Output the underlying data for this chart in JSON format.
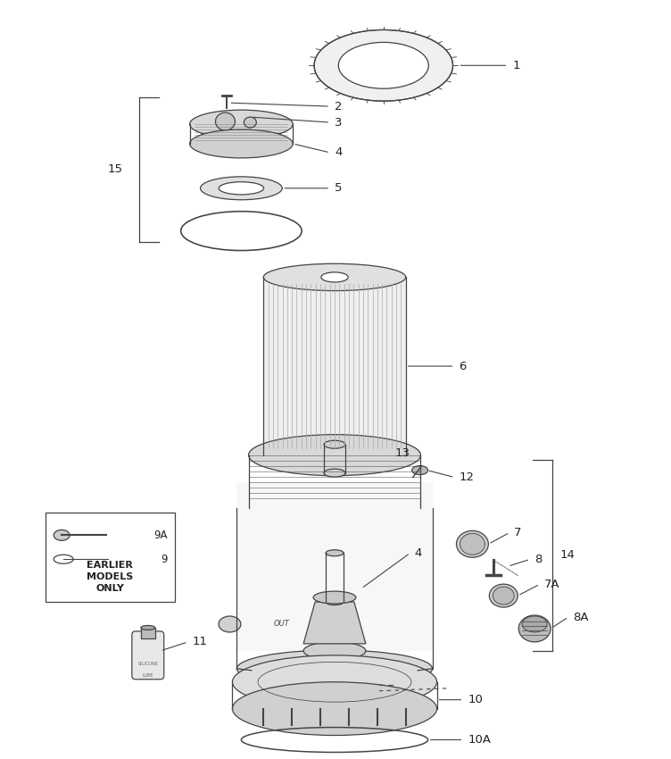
{
  "bg_color": "#ffffff",
  "line_color": "#444444",
  "label_color": "#222222",
  "parts": [
    {
      "id": "1",
      "label": "1"
    },
    {
      "id": "2",
      "label": "2"
    },
    {
      "id": "3",
      "label": "3"
    },
    {
      "id": "4",
      "label": "4"
    },
    {
      "id": "5",
      "label": "5"
    },
    {
      "id": "15",
      "label": "15"
    },
    {
      "id": "6",
      "label": "6"
    },
    {
      "id": "13",
      "label": "13"
    },
    {
      "id": "12",
      "label": "12"
    },
    {
      "id": "14",
      "label": "14"
    },
    {
      "id": "7",
      "label": "7"
    },
    {
      "id": "8",
      "label": "8"
    },
    {
      "id": "7A",
      "label": "7A"
    },
    {
      "id": "8A",
      "label": "8A"
    },
    {
      "id": "9A",
      "label": "9A"
    },
    {
      "id": "9",
      "label": "9"
    },
    {
      "id": "11",
      "label": "11"
    },
    {
      "id": "10",
      "label": "10"
    },
    {
      "id": "10A",
      "label": "10A"
    }
  ]
}
